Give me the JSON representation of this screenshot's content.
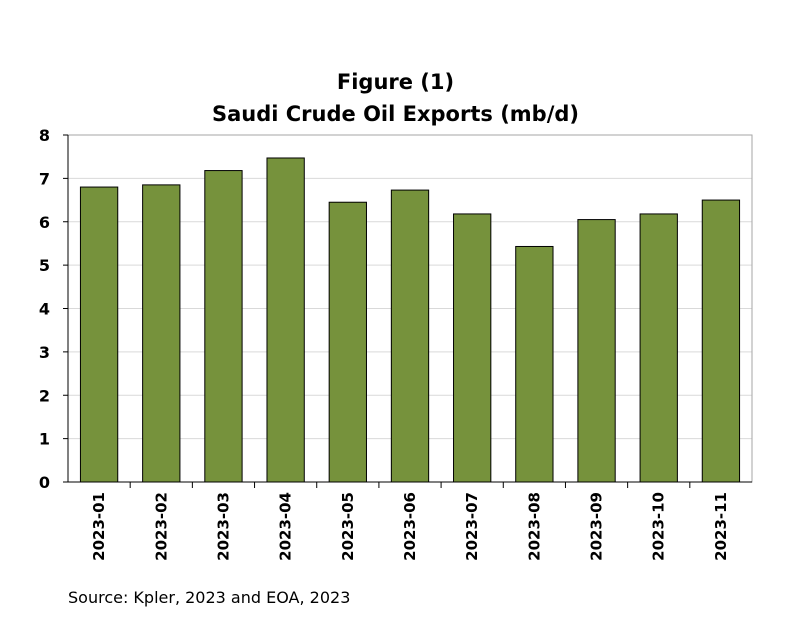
{
  "chart_data": {
    "type": "bar",
    "title": "Figure (1)",
    "subtitle": "Saudi Crude Oil Exports (mb/d)",
    "xlabel": "",
    "ylabel": "",
    "categories": [
      "2023-01",
      "2023-02",
      "2023-03",
      "2023-04",
      "2023-05",
      "2023-06",
      "2023-07",
      "2023-08",
      "2023-09",
      "2023-10",
      "2023-11"
    ],
    "values": [
      6.8,
      6.85,
      7.18,
      7.47,
      6.45,
      6.73,
      6.18,
      5.43,
      6.05,
      6.18,
      6.5
    ],
    "ylim": [
      0,
      8
    ],
    "yticks": [
      "0",
      "1",
      "2",
      "3",
      "4",
      "5",
      "6",
      "7",
      "8"
    ],
    "grid": true,
    "legend": "none",
    "bar_color": "#76923c",
    "bar_edge_color": "#000000",
    "grid_color": "#d9d9d9",
    "note": "Source: Kpler, 2023 and EOA, 2023"
  }
}
